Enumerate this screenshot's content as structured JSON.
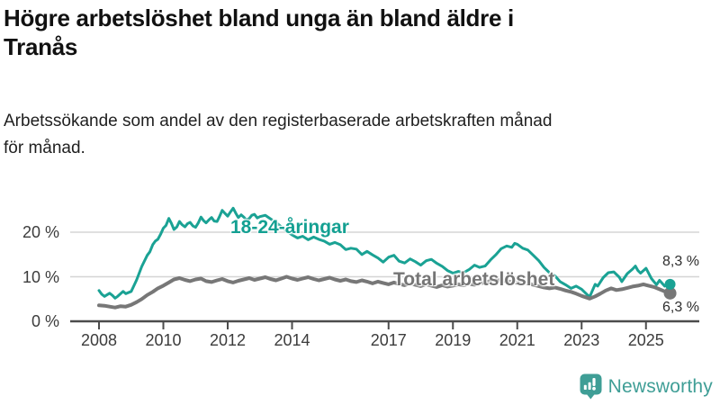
{
  "header": {
    "title_lines": [
      "Högre arbetslöshet bland unga än bland äldre i",
      "Tranås"
    ],
    "subtitle_lines": [
      "Arbetssökande som andel av den registerbaserade arbetskraften månad",
      "för månad."
    ]
  },
  "chart_data": {
    "type": "line",
    "title": "Högre arbetslöshet bland unga än bland äldre i Tranås",
    "subtitle": "Arbetssökande som andel av den registerbaserade arbetskraften månad för månad.",
    "xlabel": "",
    "ylabel": "",
    "x_unit": "year",
    "xlim": [
      2007.1,
      2026.6
    ],
    "ylim": [
      0,
      27
    ],
    "grid": "horizontal",
    "legend_position": "inline-labels",
    "x_ticks": [
      2008,
      2010,
      2012,
      2014,
      2017,
      2019,
      2021,
      2023,
      2025
    ],
    "y_ticks": [
      {
        "value": 0,
        "label": "0 %"
      },
      {
        "value": 10,
        "label": "10 %"
      },
      {
        "value": 20,
        "label": "20 %"
      }
    ],
    "series": [
      {
        "name": "18-24-åringar",
        "color": "#1aa294",
        "line_width": 3,
        "end_value": 8.3,
        "end_label": "8,3 %",
        "points": [
          [
            2008.0,
            6.9
          ],
          [
            2008.08,
            6.1
          ],
          [
            2008.17,
            5.6
          ],
          [
            2008.33,
            6.3
          ],
          [
            2008.42,
            5.8
          ],
          [
            2008.5,
            5.2
          ],
          [
            2008.58,
            5.6
          ],
          [
            2008.75,
            6.7
          ],
          [
            2008.83,
            6.2
          ],
          [
            2009.0,
            6.7
          ],
          [
            2009.08,
            7.9
          ],
          [
            2009.17,
            9.3
          ],
          [
            2009.33,
            12.3
          ],
          [
            2009.5,
            14.8
          ],
          [
            2009.58,
            15.6
          ],
          [
            2009.67,
            17.2
          ],
          [
            2009.75,
            18.0
          ],
          [
            2009.83,
            18.4
          ],
          [
            2009.92,
            19.6
          ],
          [
            2010.0,
            20.9
          ],
          [
            2010.08,
            21.5
          ],
          [
            2010.17,
            23.1
          ],
          [
            2010.25,
            22.0
          ],
          [
            2010.33,
            20.6
          ],
          [
            2010.42,
            21.2
          ],
          [
            2010.5,
            22.4
          ],
          [
            2010.58,
            21.7
          ],
          [
            2010.67,
            21.2
          ],
          [
            2010.75,
            21.9
          ],
          [
            2010.83,
            22.2
          ],
          [
            2010.92,
            21.4
          ],
          [
            2011.0,
            21.1
          ],
          [
            2011.08,
            22.0
          ],
          [
            2011.17,
            23.4
          ],
          [
            2011.25,
            22.6
          ],
          [
            2011.33,
            22.1
          ],
          [
            2011.42,
            22.8
          ],
          [
            2011.5,
            23.3
          ],
          [
            2011.58,
            22.5
          ],
          [
            2011.67,
            22.4
          ],
          [
            2011.75,
            23.6
          ],
          [
            2011.83,
            24.9
          ],
          [
            2011.92,
            24.2
          ],
          [
            2012.0,
            23.6
          ],
          [
            2012.08,
            24.5
          ],
          [
            2012.17,
            25.4
          ],
          [
            2012.25,
            24.3
          ],
          [
            2012.33,
            23.3
          ],
          [
            2012.42,
            23.9
          ],
          [
            2012.5,
            23.4
          ],
          [
            2012.58,
            22.7
          ],
          [
            2012.67,
            23.1
          ],
          [
            2012.75,
            23.8
          ],
          [
            2012.83,
            24.0
          ],
          [
            2012.92,
            23.2
          ],
          [
            2013.0,
            23.5
          ],
          [
            2013.17,
            23.8
          ],
          [
            2013.33,
            23.0
          ],
          [
            2013.5,
            22.2
          ],
          [
            2013.67,
            21.2
          ],
          [
            2013.83,
            20.3
          ],
          [
            2014.0,
            19.4
          ],
          [
            2014.17,
            18.7
          ],
          [
            2014.33,
            19.1
          ],
          [
            2014.5,
            18.3
          ],
          [
            2014.67,
            18.9
          ],
          [
            2014.83,
            18.4
          ],
          [
            2015.0,
            18.0
          ],
          [
            2015.17,
            17.3
          ],
          [
            2015.33,
            17.7
          ],
          [
            2015.5,
            17.2
          ],
          [
            2015.67,
            16.1
          ],
          [
            2015.83,
            16.4
          ],
          [
            2016.0,
            16.2
          ],
          [
            2016.17,
            15.0
          ],
          [
            2016.33,
            15.7
          ],
          [
            2016.5,
            14.9
          ],
          [
            2016.67,
            14.2
          ],
          [
            2016.83,
            13.3
          ],
          [
            2017.0,
            14.4
          ],
          [
            2017.17,
            14.8
          ],
          [
            2017.33,
            13.5
          ],
          [
            2017.5,
            13.1
          ],
          [
            2017.67,
            14.0
          ],
          [
            2017.83,
            13.4
          ],
          [
            2018.0,
            12.6
          ],
          [
            2018.17,
            13.6
          ],
          [
            2018.33,
            13.9
          ],
          [
            2018.5,
            13.0
          ],
          [
            2018.67,
            12.3
          ],
          [
            2018.83,
            11.4
          ],
          [
            2019.0,
            10.8
          ],
          [
            2019.17,
            11.2
          ],
          [
            2019.33,
            10.9
          ],
          [
            2019.5,
            11.6
          ],
          [
            2019.67,
            12.6
          ],
          [
            2019.83,
            12.1
          ],
          [
            2020.0,
            12.4
          ],
          [
            2020.17,
            13.8
          ],
          [
            2020.33,
            14.9
          ],
          [
            2020.5,
            16.3
          ],
          [
            2020.67,
            16.9
          ],
          [
            2020.83,
            16.6
          ],
          [
            2020.92,
            17.5
          ],
          [
            2021.0,
            17.3
          ],
          [
            2021.17,
            16.4
          ],
          [
            2021.33,
            16.0
          ],
          [
            2021.5,
            14.8
          ],
          [
            2021.67,
            13.6
          ],
          [
            2021.83,
            12.1
          ],
          [
            2022.0,
            10.9
          ],
          [
            2022.17,
            10.2
          ],
          [
            2022.33,
            8.9
          ],
          [
            2022.5,
            8.2
          ],
          [
            2022.67,
            7.4
          ],
          [
            2022.83,
            7.9
          ],
          [
            2023.0,
            7.2
          ],
          [
            2023.17,
            6.0
          ],
          [
            2023.25,
            5.5
          ],
          [
            2023.42,
            8.3
          ],
          [
            2023.5,
            7.9
          ],
          [
            2023.67,
            9.8
          ],
          [
            2023.83,
            10.9
          ],
          [
            2024.0,
            11.1
          ],
          [
            2024.17,
            9.9
          ],
          [
            2024.25,
            8.9
          ],
          [
            2024.42,
            10.7
          ],
          [
            2024.58,
            11.7
          ],
          [
            2024.67,
            12.4
          ],
          [
            2024.75,
            11.4
          ],
          [
            2024.83,
            10.8
          ],
          [
            2025.0,
            11.9
          ],
          [
            2025.17,
            9.6
          ],
          [
            2025.33,
            8.2
          ],
          [
            2025.42,
            9.2
          ],
          [
            2025.58,
            7.9
          ],
          [
            2025.67,
            8.6
          ],
          [
            2025.75,
            8.3
          ]
        ]
      },
      {
        "name": "Total arbetslöshet",
        "color": "#777777",
        "line_width": 4,
        "end_value": 6.3,
        "end_label": "6,3 %",
        "points": [
          [
            2008.0,
            3.6
          ],
          [
            2008.17,
            3.5
          ],
          [
            2008.33,
            3.3
          ],
          [
            2008.5,
            3.1
          ],
          [
            2008.67,
            3.4
          ],
          [
            2008.83,
            3.3
          ],
          [
            2009.0,
            3.7
          ],
          [
            2009.17,
            4.3
          ],
          [
            2009.33,
            5.0
          ],
          [
            2009.5,
            5.9
          ],
          [
            2009.67,
            6.6
          ],
          [
            2009.83,
            7.4
          ],
          [
            2010.0,
            8.0
          ],
          [
            2010.17,
            8.7
          ],
          [
            2010.33,
            9.4
          ],
          [
            2010.5,
            9.7
          ],
          [
            2010.67,
            9.3
          ],
          [
            2010.83,
            9.0
          ],
          [
            2011.0,
            9.4
          ],
          [
            2011.17,
            9.6
          ],
          [
            2011.33,
            9.0
          ],
          [
            2011.5,
            8.8
          ],
          [
            2011.67,
            9.2
          ],
          [
            2011.83,
            9.5
          ],
          [
            2012.0,
            9.0
          ],
          [
            2012.17,
            8.7
          ],
          [
            2012.33,
            9.1
          ],
          [
            2012.5,
            9.4
          ],
          [
            2012.67,
            9.7
          ],
          [
            2012.83,
            9.3
          ],
          [
            2013.0,
            9.6
          ],
          [
            2013.17,
            9.9
          ],
          [
            2013.33,
            9.5
          ],
          [
            2013.5,
            9.2
          ],
          [
            2013.67,
            9.6
          ],
          [
            2013.83,
            10.0
          ],
          [
            2014.0,
            9.6
          ],
          [
            2014.17,
            9.3
          ],
          [
            2014.33,
            9.6
          ],
          [
            2014.5,
            9.9
          ],
          [
            2014.67,
            9.5
          ],
          [
            2014.83,
            9.2
          ],
          [
            2015.0,
            9.5
          ],
          [
            2015.17,
            9.8
          ],
          [
            2015.33,
            9.4
          ],
          [
            2015.5,
            9.1
          ],
          [
            2015.67,
            9.4
          ],
          [
            2015.83,
            9.0
          ],
          [
            2016.0,
            8.8
          ],
          [
            2016.17,
            9.2
          ],
          [
            2016.33,
            8.9
          ],
          [
            2016.5,
            8.5
          ],
          [
            2016.67,
            8.9
          ],
          [
            2016.83,
            8.6
          ],
          [
            2017.0,
            8.3
          ],
          [
            2017.17,
            8.7
          ],
          [
            2017.33,
            8.4
          ],
          [
            2017.5,
            8.1
          ],
          [
            2017.67,
            8.5
          ],
          [
            2017.83,
            8.2
          ],
          [
            2018.0,
            7.9
          ],
          [
            2018.17,
            8.3
          ],
          [
            2018.33,
            8.0
          ],
          [
            2018.5,
            7.7
          ],
          [
            2018.67,
            8.1
          ],
          [
            2018.83,
            7.8
          ],
          [
            2019.0,
            8.0
          ],
          [
            2019.17,
            8.3
          ],
          [
            2019.33,
            8.1
          ],
          [
            2019.5,
            8.4
          ],
          [
            2019.67,
            8.2
          ],
          [
            2019.83,
            8.5
          ],
          [
            2020.0,
            8.7
          ],
          [
            2020.17,
            9.1
          ],
          [
            2020.33,
            9.4
          ],
          [
            2020.5,
            9.2
          ],
          [
            2020.67,
            9.0
          ],
          [
            2020.83,
            8.8
          ],
          [
            2021.0,
            8.6
          ],
          [
            2021.17,
            8.8
          ],
          [
            2021.33,
            8.5
          ],
          [
            2021.5,
            8.2
          ],
          [
            2021.67,
            7.9
          ],
          [
            2021.83,
            7.6
          ],
          [
            2022.0,
            7.4
          ],
          [
            2022.17,
            7.6
          ],
          [
            2022.33,
            7.3
          ],
          [
            2022.5,
            6.9
          ],
          [
            2022.67,
            6.6
          ],
          [
            2022.83,
            6.2
          ],
          [
            2023.0,
            5.7
          ],
          [
            2023.17,
            5.3
          ],
          [
            2023.25,
            5.1
          ],
          [
            2023.42,
            5.6
          ],
          [
            2023.58,
            6.2
          ],
          [
            2023.75,
            6.9
          ],
          [
            2023.92,
            7.4
          ],
          [
            2024.08,
            7.0
          ],
          [
            2024.25,
            7.2
          ],
          [
            2024.42,
            7.5
          ],
          [
            2024.58,
            7.8
          ],
          [
            2024.75,
            8.0
          ],
          [
            2024.92,
            8.3
          ],
          [
            2025.08,
            8.0
          ],
          [
            2025.25,
            7.7
          ],
          [
            2025.42,
            7.2
          ],
          [
            2025.58,
            6.7
          ],
          [
            2025.75,
            6.3
          ]
        ]
      }
    ],
    "colors": {
      "grid": "#d5d5d5",
      "axis": "#4c4c4c",
      "tick_text": "#3c3c3c"
    }
  },
  "branding": {
    "logo_text": "Newsworthy",
    "logo_color": "#3f9e96",
    "logo_icon": "newsworthy-chart-bubble-icon"
  }
}
